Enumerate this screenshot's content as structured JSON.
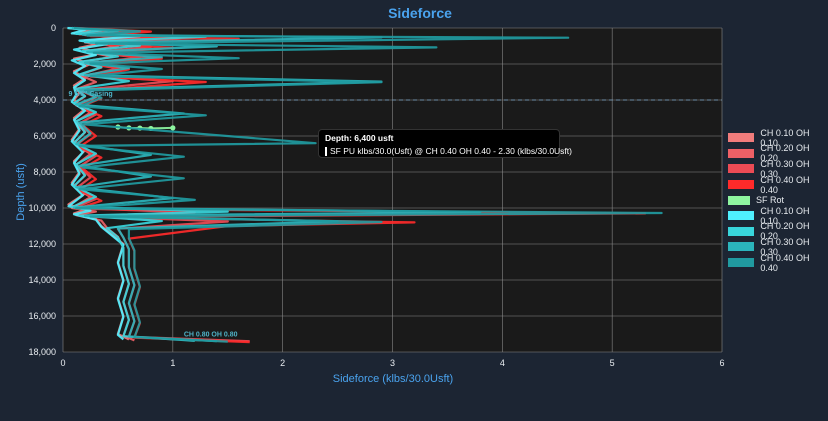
{
  "chart_data": {
    "type": "line",
    "title": "Sideforce",
    "xlabel": "Sideforce (klbs/30.0Usft)",
    "ylabel": "Depth (usft)",
    "xlim": [
      0,
      6
    ],
    "ylim": [
      0,
      18000
    ],
    "y_reversed": true,
    "x_ticks": [
      "0",
      "1",
      "2",
      "3",
      "4",
      "5",
      "6"
    ],
    "y_ticks": [
      "0",
      "2,000",
      "4,000",
      "6,000",
      "8,000",
      "10,000",
      "12,000",
      "14,000",
      "16,000",
      "18,000"
    ],
    "grid": true,
    "legend_position": "right",
    "reference_line": {
      "depth": 4000
    },
    "series": [
      {
        "name": "CH 0.10 OH 0.10",
        "color": "#f07c7c",
        "points": [
          [
            0.05,
            0
          ],
          [
            0.25,
            120
          ],
          [
            0.1,
            300
          ],
          [
            0.55,
            500
          ],
          [
            0.2,
            700
          ],
          [
            0.3,
            900
          ],
          [
            0.15,
            1100
          ],
          [
            0.35,
            1400
          ],
          [
            0.1,
            1700
          ],
          [
            0.25,
            2000
          ],
          [
            0.1,
            2400
          ],
          [
            0.2,
            2800
          ],
          [
            0.1,
            3200
          ],
          [
            0.15,
            3600
          ],
          [
            0.1,
            4000
          ],
          [
            0.2,
            4500
          ],
          [
            0.1,
            5000
          ],
          [
            0.15,
            5600
          ],
          [
            0.08,
            6200
          ],
          [
            0.2,
            6800
          ],
          [
            0.1,
            7400
          ],
          [
            0.15,
            8000
          ],
          [
            0.08,
            8600
          ],
          [
            0.2,
            9200
          ],
          [
            0.05,
            9800
          ],
          [
            0.2,
            10100
          ],
          [
            0.1,
            10300
          ],
          [
            0.3,
            10600
          ],
          [
            0.35,
            11000
          ],
          [
            0.45,
            11500
          ],
          [
            0.55,
            12000
          ],
          [
            0.5,
            13000
          ],
          [
            0.55,
            14000
          ],
          [
            0.5,
            15000
          ],
          [
            0.55,
            16000
          ],
          [
            0.5,
            17000
          ],
          [
            0.6,
            17300
          ]
        ]
      },
      {
        "name": "CH 0.20 OH 0.20",
        "color": "#ee6066",
        "points": [
          [
            0.08,
            0
          ],
          [
            0.4,
            150
          ],
          [
            0.15,
            350
          ],
          [
            0.8,
            500
          ],
          [
            0.2,
            800
          ],
          [
            0.5,
            1000
          ],
          [
            0.2,
            1300
          ],
          [
            0.45,
            1600
          ],
          [
            0.15,
            1900
          ],
          [
            0.35,
            2200
          ],
          [
            0.15,
            2600
          ],
          [
            0.3,
            3000
          ],
          [
            0.12,
            3400
          ],
          [
            0.2,
            3800
          ],
          [
            0.1,
            4200
          ],
          [
            0.25,
            4700
          ],
          [
            0.12,
            5200
          ],
          [
            0.2,
            5800
          ],
          [
            0.1,
            6400
          ],
          [
            0.25,
            7000
          ],
          [
            0.12,
            7600
          ],
          [
            0.2,
            8200
          ],
          [
            0.1,
            8800
          ],
          [
            0.25,
            9400
          ],
          [
            0.08,
            10000
          ],
          [
            0.3,
            10200
          ],
          [
            0.12,
            10400
          ],
          [
            0.35,
            10700
          ],
          [
            0.4,
            11100
          ],
          [
            0.5,
            11600
          ],
          [
            0.55,
            12200
          ],
          [
            0.55,
            13200
          ],
          [
            0.6,
            14200
          ],
          [
            0.55,
            15200
          ],
          [
            0.6,
            16200
          ],
          [
            0.55,
            17100
          ],
          [
            0.65,
            17350
          ]
        ]
      },
      {
        "name": "CH 0.30 OH 0.30",
        "color": "#eb4b55",
        "points": [
          [
            0.1,
            0
          ],
          [
            0.6,
            180
          ],
          [
            0.2,
            400
          ],
          [
            1.2,
            550
          ],
          [
            0.3,
            850
          ],
          [
            0.8,
            1050
          ],
          [
            0.25,
            1350
          ],
          [
            0.7,
            1650
          ],
          [
            0.2,
            1950
          ],
          [
            0.5,
            2250
          ],
          [
            0.2,
            2650
          ],
          [
            1.0,
            2950
          ],
          [
            0.15,
            3450
          ],
          [
            0.3,
            3850
          ],
          [
            0.12,
            4300
          ],
          [
            0.3,
            4800
          ],
          [
            0.15,
            5300
          ],
          [
            0.25,
            5900
          ],
          [
            0.12,
            6500
          ],
          [
            0.3,
            7100
          ],
          [
            0.15,
            7700
          ],
          [
            0.25,
            8300
          ],
          [
            0.12,
            8900
          ],
          [
            0.3,
            9500
          ],
          [
            0.1,
            10000
          ],
          [
            1.2,
            10250
          ],
          [
            0.2,
            10450
          ],
          [
            1.5,
            10750
          ],
          [
            0.5,
            11150
          ],
          [
            0.55,
            11650
          ],
          [
            0.6,
            12300
          ],
          [
            0.6,
            13300
          ],
          [
            0.65,
            14300
          ],
          [
            0.6,
            15300
          ],
          [
            0.65,
            16300
          ],
          [
            0.6,
            17150
          ],
          [
            1.7,
            17400
          ]
        ]
      },
      {
        "name": "CH 0.40 OH 0.40",
        "color": "#ff2a2a",
        "points": [
          [
            0.12,
            0
          ],
          [
            0.8,
            200
          ],
          [
            0.25,
            450
          ],
          [
            1.6,
            600
          ],
          [
            0.35,
            900
          ],
          [
            1.0,
            1100
          ],
          [
            0.3,
            1400
          ],
          [
            0.9,
            1700
          ],
          [
            0.25,
            2000
          ],
          [
            0.6,
            2300
          ],
          [
            0.25,
            2700
          ],
          [
            1.3,
            3000
          ],
          [
            0.2,
            3500
          ],
          [
            0.35,
            3900
          ],
          [
            0.15,
            4400
          ],
          [
            0.35,
            4900
          ],
          [
            0.18,
            5400
          ],
          [
            0.3,
            6000
          ],
          [
            0.15,
            6600
          ],
          [
            0.35,
            7200
          ],
          [
            0.18,
            7800
          ],
          [
            0.3,
            8400
          ],
          [
            0.15,
            9000
          ],
          [
            0.35,
            9600
          ],
          [
            0.12,
            10050
          ],
          [
            5.3,
            10300
          ],
          [
            0.3,
            10500
          ],
          [
            3.2,
            10800
          ],
          [
            1.5,
            11000
          ],
          [
            0.6,
            11700
          ],
          [
            0.65,
            12400
          ],
          [
            0.65,
            13400
          ],
          [
            0.7,
            14400
          ],
          [
            0.65,
            15400
          ],
          [
            0.7,
            16400
          ],
          [
            0.65,
            17200
          ],
          [
            1.7,
            17450
          ]
        ]
      },
      {
        "name": "SF Rot",
        "color": "#8ef5a0",
        "points": [
          [
            0.5,
            5500
          ],
          [
            0.6,
            5550
          ],
          [
            0.7,
            5560
          ],
          [
            0.8,
            5580
          ],
          [
            1.0,
            5550
          ]
        ]
      },
      {
        "name": "CH 0.10 OH 0.10",
        "color": "#4ff0ff",
        "points": [
          [
            0.04,
            0
          ],
          [
            0.2,
            100
          ],
          [
            0.08,
            300
          ],
          [
            0.7,
            450
          ],
          [
            0.15,
            700
          ],
          [
            0.4,
            900
          ],
          [
            0.1,
            1200
          ],
          [
            0.3,
            1500
          ],
          [
            0.08,
            1800
          ],
          [
            0.2,
            2100
          ],
          [
            0.1,
            2500
          ],
          [
            0.2,
            2900
          ],
          [
            0.1,
            3300
          ],
          [
            0.12,
            3700
          ],
          [
            0.08,
            4100
          ],
          [
            0.2,
            4600
          ],
          [
            0.1,
            5100
          ],
          [
            0.15,
            5700
          ],
          [
            0.08,
            6300
          ],
          [
            0.18,
            6900
          ],
          [
            0.1,
            7500
          ],
          [
            0.15,
            8100
          ],
          [
            0.08,
            8700
          ],
          [
            0.18,
            9300
          ],
          [
            0.05,
            9900
          ],
          [
            0.25,
            10150
          ],
          [
            0.1,
            10350
          ],
          [
            0.3,
            10650
          ],
          [
            0.35,
            11050
          ],
          [
            0.45,
            11550
          ],
          [
            0.55,
            12050
          ],
          [
            0.5,
            13050
          ],
          [
            0.55,
            14050
          ],
          [
            0.5,
            15050
          ],
          [
            0.55,
            16050
          ],
          [
            0.5,
            17050
          ],
          [
            0.55,
            17300
          ]
        ]
      },
      {
        "name": "CH 0.20 OH 0.20",
        "color": "#38d5dc",
        "points": [
          [
            0.06,
            0
          ],
          [
            0.35,
            130
          ],
          [
            0.12,
            330
          ],
          [
            1.3,
            480
          ],
          [
            0.2,
            780
          ],
          [
            0.7,
            980
          ],
          [
            0.18,
            1280
          ],
          [
            0.5,
            1580
          ],
          [
            0.15,
            1880
          ],
          [
            0.35,
            2180
          ],
          [
            0.15,
            2580
          ],
          [
            0.6,
            2950
          ],
          [
            0.12,
            3380
          ],
          [
            0.2,
            3780
          ],
          [
            0.1,
            4180
          ],
          [
            0.3,
            4680
          ],
          [
            0.12,
            5180
          ],
          [
            0.2,
            5780
          ],
          [
            0.1,
            6380
          ],
          [
            0.3,
            6980
          ],
          [
            0.12,
            7580
          ],
          [
            0.2,
            8180
          ],
          [
            0.1,
            8780
          ],
          [
            0.3,
            9380
          ],
          [
            0.08,
            9950
          ],
          [
            1.5,
            10200
          ],
          [
            0.15,
            10420
          ],
          [
            0.9,
            10720
          ],
          [
            0.4,
            11120
          ],
          [
            0.5,
            11620
          ],
          [
            0.55,
            12220
          ],
          [
            0.55,
            13220
          ],
          [
            0.6,
            14220
          ],
          [
            0.55,
            15220
          ],
          [
            0.6,
            16220
          ],
          [
            0.55,
            17120
          ],
          [
            1.2,
            17380
          ]
        ]
      },
      {
        "name": "CH 0.30 OH 0.30",
        "color": "#2bb4bc",
        "points": [
          [
            0.08,
            0
          ],
          [
            0.5,
            160
          ],
          [
            0.18,
            380
          ],
          [
            2.9,
            520
          ],
          [
            0.25,
            820
          ],
          [
            1.4,
            1020
          ],
          [
            0.22,
            1320
          ],
          [
            0.9,
            1620
          ],
          [
            0.2,
            1920
          ],
          [
            0.6,
            2220
          ],
          [
            0.2,
            2620
          ],
          [
            2.9,
            2980
          ],
          [
            0.15,
            3420
          ],
          [
            0.3,
            3820
          ],
          [
            0.12,
            4250
          ],
          [
            1.1,
            4750
          ],
          [
            0.15,
            5250
          ],
          [
            0.25,
            5850
          ],
          [
            0.12,
            6450
          ],
          [
            0.8,
            7050
          ],
          [
            0.15,
            7650
          ],
          [
            0.8,
            8250
          ],
          [
            0.12,
            8850
          ],
          [
            1.0,
            9450
          ],
          [
            0.1,
            9980
          ],
          [
            3.8,
            10230
          ],
          [
            0.2,
            10440
          ],
          [
            2.5,
            10740
          ],
          [
            0.5,
            11140
          ],
          [
            0.55,
            11640
          ],
          [
            0.6,
            12280
          ],
          [
            0.6,
            13280
          ],
          [
            0.65,
            14280
          ],
          [
            0.6,
            15280
          ],
          [
            0.65,
            16280
          ],
          [
            0.6,
            17140
          ],
          [
            1.4,
            17400
          ]
        ]
      },
      {
        "name": "CH 0.40 OH 0.40",
        "color": "#209aa0",
        "points": [
          [
            0.1,
            0
          ],
          [
            0.7,
            190
          ],
          [
            0.22,
            420
          ],
          [
            4.6,
            540
          ],
          [
            0.3,
            860
          ],
          [
            3.4,
            1080
          ],
          [
            0.28,
            1380
          ],
          [
            1.6,
            1680
          ],
          [
            0.25,
            1980
          ],
          [
            0.9,
            2280
          ],
          [
            0.25,
            2680
          ],
          [
            2.9,
            3010
          ],
          [
            0.2,
            3480
          ],
          [
            0.35,
            3880
          ],
          [
            0.15,
            4350
          ],
          [
            1.3,
            4850
          ],
          [
            0.18,
            5350
          ],
          [
            2.3,
            6400
          ],
          [
            0.15,
            6550
          ],
          [
            1.1,
            7150
          ],
          [
            0.18,
            7750
          ],
          [
            1.1,
            8350
          ],
          [
            0.15,
            8950
          ],
          [
            1.2,
            9550
          ],
          [
            0.12,
            10020
          ],
          [
            5.45,
            10280
          ],
          [
            0.25,
            10480
          ],
          [
            2.9,
            10780
          ],
          [
            0.6,
            11180
          ],
          [
            0.6,
            11680
          ],
          [
            0.65,
            12350
          ],
          [
            0.65,
            13350
          ],
          [
            0.7,
            14350
          ],
          [
            0.65,
            15350
          ],
          [
            0.7,
            16350
          ],
          [
            0.65,
            17180
          ],
          [
            1.5,
            17420
          ]
        ]
      }
    ],
    "annotations": [
      {
        "text": "CH 0.80 OH 0.80",
        "x": 1.1,
        "y": 17150
      },
      {
        "text": "9 5/8\" Casing",
        "x": 0.05,
        "y": 3780
      }
    ]
  },
  "tooltip": {
    "title": "Depth: 6,400 usft",
    "text": "SF PU klbs/30.0(Usft) @ CH 0.40 OH 0.40 - 2.30 (klbs/30.0Usft)",
    "color": "#209aa0"
  }
}
